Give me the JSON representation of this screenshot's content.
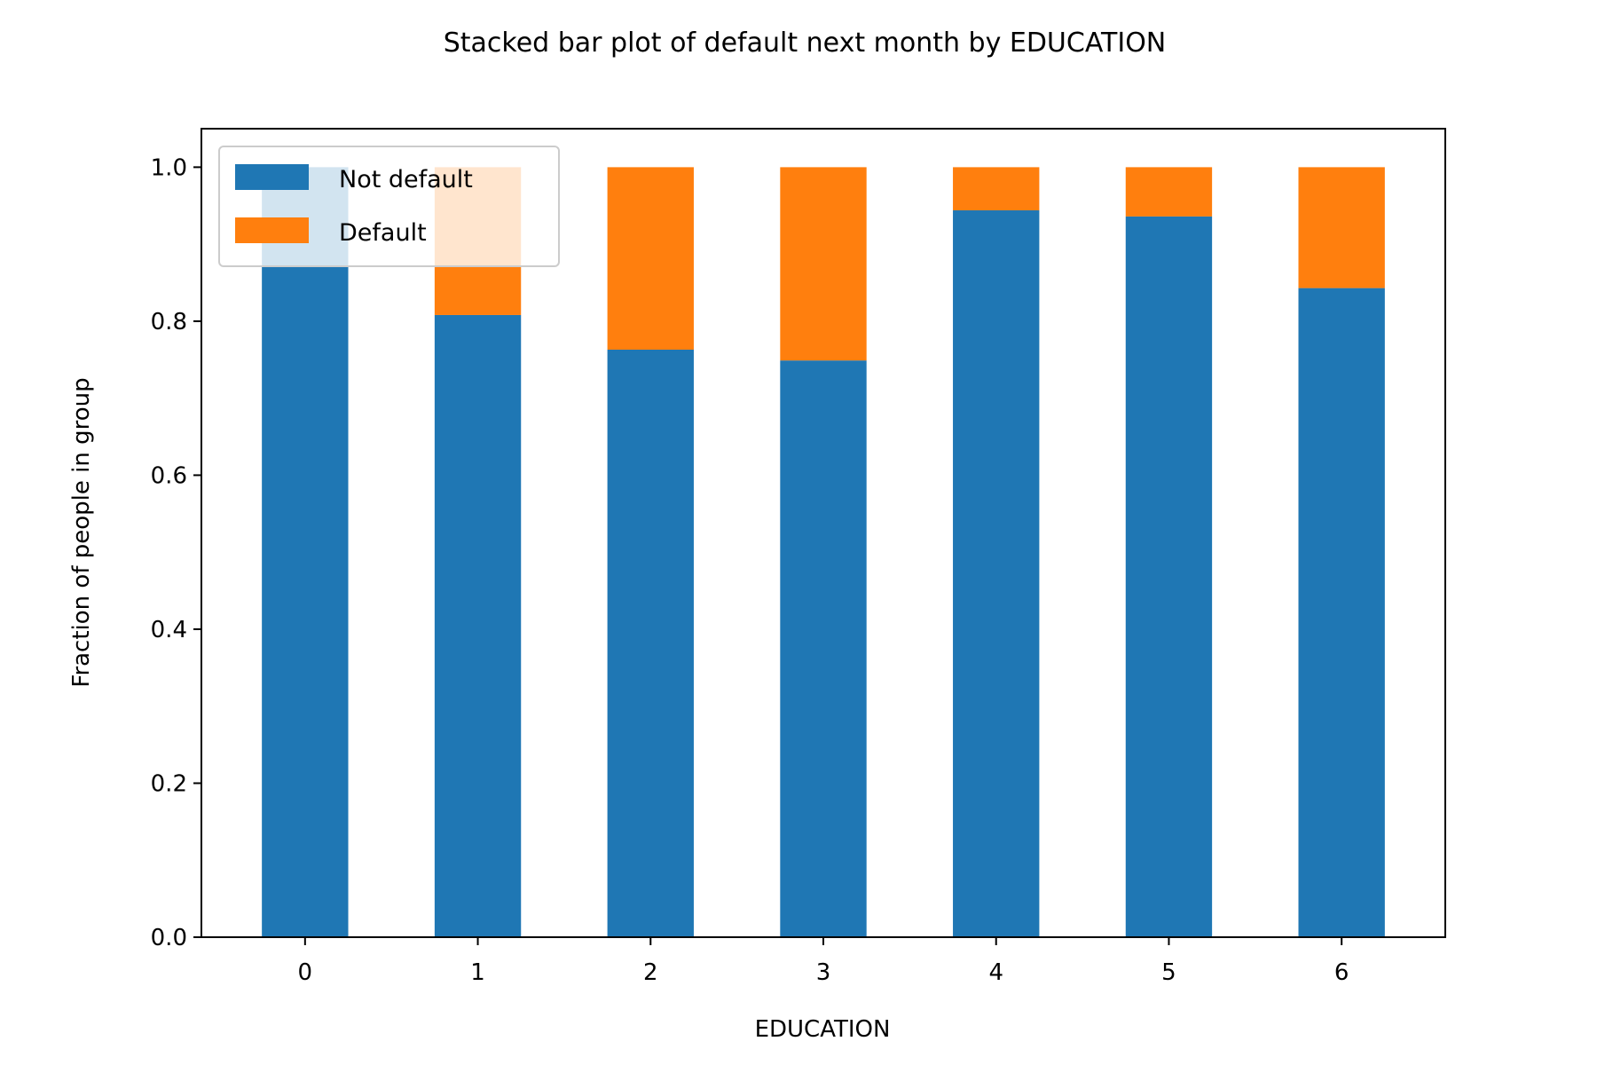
{
  "chart_data": {
    "type": "bar",
    "stacked": true,
    "title": "Stacked bar plot of default next month by EDUCATION",
    "xlabel": "EDUCATION",
    "ylabel": "Fraction of people in group",
    "categories": [
      "0",
      "1",
      "2",
      "3",
      "4",
      "5",
      "6"
    ],
    "ylim": [
      0,
      1.05
    ],
    "yticks": [
      "0.0",
      "0.2",
      "0.4",
      "0.6",
      "0.8",
      "1.0"
    ],
    "grid": false,
    "legend_position": "upper-left",
    "series": [
      {
        "name": "Not default",
        "color": "#1f77b4",
        "values": [
          1.0,
          0.808,
          0.763,
          0.749,
          0.944,
          0.936,
          0.843
        ]
      },
      {
        "name": "Default",
        "color": "#ff7f0e",
        "values": [
          0.0,
          0.192,
          0.237,
          0.251,
          0.056,
          0.064,
          0.157
        ]
      }
    ]
  }
}
